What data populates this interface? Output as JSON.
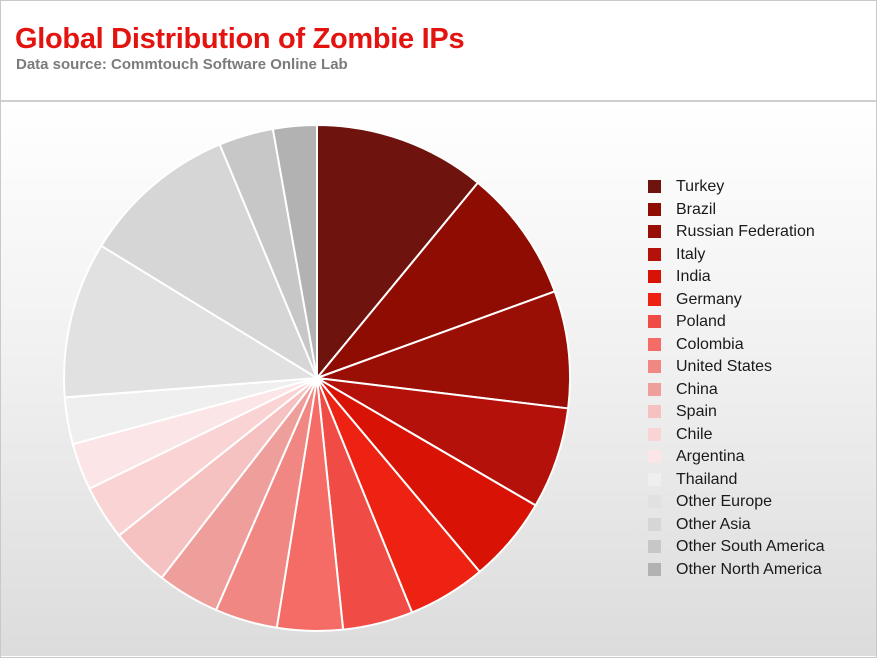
{
  "header": {
    "title": "Global Distribution of Zombie IPs",
    "subtitle": "Data source: Commtouch Software Online Lab"
  },
  "colors": {
    "title": "#e3140f",
    "subtitle": "#7b7b7b",
    "slice_border": "#ffffff"
  },
  "chart_data": {
    "type": "pie",
    "title": "Global Distribution of Zombie IPs",
    "subtitle": "Data source: Commtouch Software Online Lab",
    "legend_position": "right",
    "start_angle": "12 o'clock, clockwise",
    "categories": [
      "Turkey",
      "Brazil",
      "Russian Federation",
      "Italy",
      "India",
      "Germany",
      "Poland",
      "Colombia",
      "United States",
      "China",
      "Spain",
      "Chile",
      "Argentina",
      "Thailand",
      "Other Europe",
      "Other Asia",
      "Other South America",
      "Other North America"
    ],
    "values": [
      11.0,
      8.5,
      7.5,
      6.5,
      5.5,
      5.0,
      4.5,
      4.2,
      4.0,
      4.0,
      3.8,
      3.5,
      3.0,
      3.0,
      10.0,
      10.0,
      3.5,
      2.8
    ],
    "value_unit": "% of zombie IPs (estimated)",
    "colors": [
      "#6e130d",
      "#8f0c03",
      "#9a0f05",
      "#b5110b",
      "#d81204",
      "#ee2212",
      "#f04c45",
      "#f56b66",
      "#f08782",
      "#ef9f9b",
      "#f5c2c1",
      "#fad4d4",
      "#fbe5e6",
      "#efefef",
      "#e1e1e1",
      "#d6d6d6",
      "#c7c7c7",
      "#b2b2b2"
    ]
  }
}
